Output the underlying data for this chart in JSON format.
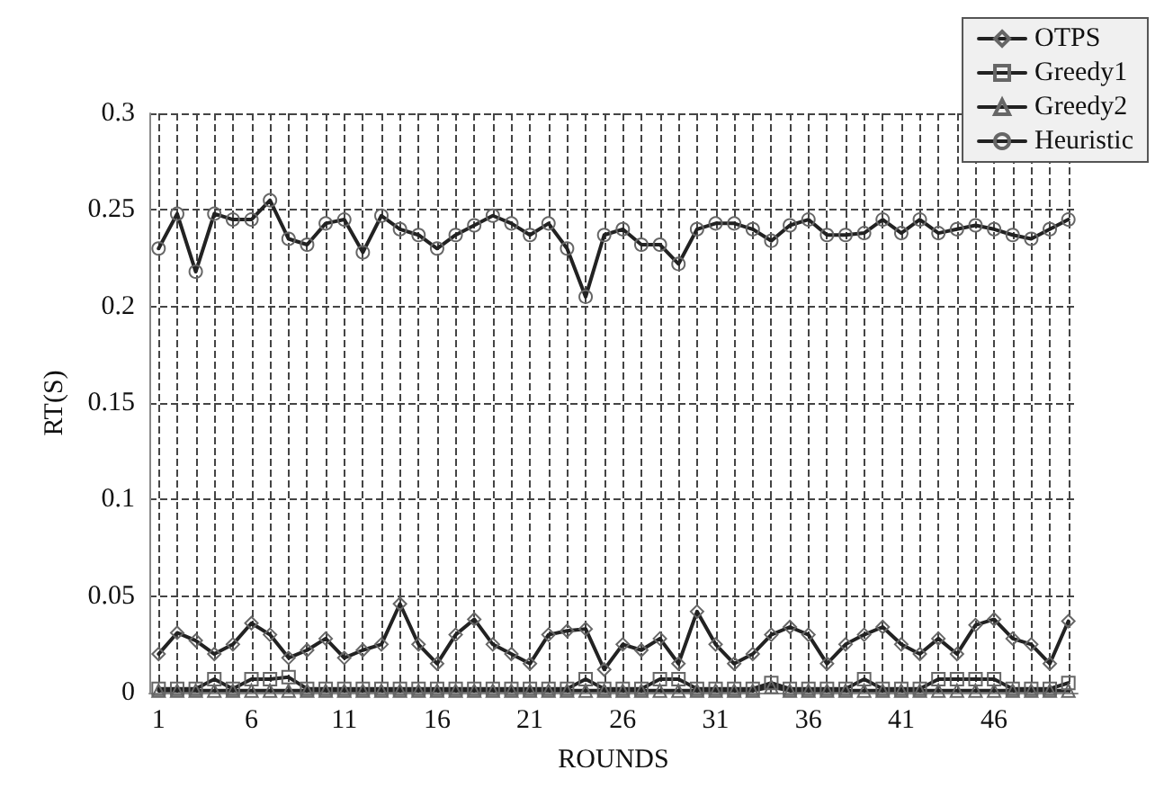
{
  "chart_data": {
    "type": "line",
    "xlabel": "ROUNDS",
    "ylabel": "RT(S)",
    "x": [
      1,
      2,
      3,
      4,
      5,
      6,
      7,
      8,
      9,
      10,
      11,
      12,
      13,
      14,
      15,
      16,
      17,
      18,
      19,
      20,
      21,
      22,
      23,
      24,
      25,
      26,
      27,
      28,
      29,
      30,
      31,
      32,
      33,
      34,
      35,
      36,
      37,
      38,
      39,
      40,
      41,
      42,
      43,
      44,
      45,
      46,
      47,
      48,
      49,
      50
    ],
    "xlim": [
      0.5,
      50.5
    ],
    "xticks": [
      1,
      {
        "value": 2,
        "label": null
      },
      {
        "value": 3,
        "label": null
      },
      {
        "value": 4,
        "label": null
      },
      {
        "value": 5,
        "label": null
      },
      6,
      {
        "value": 7,
        "label": null
      },
      {
        "value": 8,
        "label": null
      },
      {
        "value": 9,
        "label": null
      },
      {
        "value": 10,
        "label": null
      },
      11,
      {
        "value": 12,
        "label": null
      },
      {
        "value": 13,
        "label": null
      },
      {
        "value": 14,
        "label": null
      },
      {
        "value": 15,
        "label": null
      },
      16,
      {
        "value": 17,
        "label": null
      },
      {
        "value": 18,
        "label": null
      },
      {
        "value": 19,
        "label": null
      },
      {
        "value": 20,
        "label": null
      },
      21,
      {
        "value": 22,
        "label": null
      },
      {
        "value": 23,
        "label": null
      },
      {
        "value": 24,
        "label": null
      },
      {
        "value": 25,
        "label": null
      },
      26,
      {
        "value": 27,
        "label": null
      },
      {
        "value": 28,
        "label": null
      },
      {
        "value": 29,
        "label": null
      },
      {
        "value": 30,
        "label": null
      },
      31,
      {
        "value": 32,
        "label": null
      },
      {
        "value": 33,
        "label": null
      },
      {
        "value": 34,
        "label": null
      },
      {
        "value": 35,
        "label": null
      },
      36,
      {
        "value": 37,
        "label": null
      },
      {
        "value": 38,
        "label": null
      },
      {
        "value": 39,
        "label": null
      },
      {
        "value": 40,
        "label": null
      },
      41,
      {
        "value": 42,
        "label": null
      },
      {
        "value": 43,
        "label": null
      },
      {
        "value": 44,
        "label": null
      },
      {
        "value": 45,
        "label": null
      },
      46,
      {
        "value": 47,
        "label": null
      },
      {
        "value": 48,
        "label": null
      },
      {
        "value": 49,
        "label": null
      },
      {
        "value": 50,
        "label": null
      }
    ],
    "series": [
      {
        "name": "OTPS",
        "color": "#222222",
        "marker": "diamond",
        "values": [
          0.02,
          0.031,
          0.027,
          0.02,
          0.025,
          0.036,
          0.03,
          0.018,
          0.022,
          0.028,
          0.018,
          0.022,
          0.025,
          0.046,
          0.025,
          0.015,
          0.03,
          0.038,
          0.025,
          0.02,
          0.015,
          0.03,
          0.032,
          0.033,
          0.012,
          0.025,
          0.022,
          0.028,
          0.015,
          0.042,
          0.025,
          0.015,
          0.02,
          0.03,
          0.034,
          0.03,
          0.015,
          0.025,
          0.03,
          0.034,
          0.025,
          0.02,
          0.028,
          0.02,
          0.035,
          0.038,
          0.028,
          0.025,
          0.015,
          0.037
        ]
      },
      {
        "name": "Greedy1",
        "color": "#222222",
        "marker": "square",
        "values": [
          0.002,
          0.002,
          0.002,
          0.007,
          0.002,
          0.007,
          0.007,
          0.008,
          0.002,
          0.002,
          0.002,
          0.002,
          0.002,
          0.002,
          0.002,
          0.002,
          0.002,
          0.002,
          0.002,
          0.002,
          0.002,
          0.002,
          0.002,
          0.007,
          0.002,
          0.002,
          0.002,
          0.007,
          0.007,
          0.002,
          0.002,
          0.002,
          0.002,
          0.005,
          0.002,
          0.002,
          0.002,
          0.002,
          0.007,
          0.002,
          0.002,
          0.002,
          0.007,
          0.007,
          0.007,
          0.007,
          0.002,
          0.002,
          0.002,
          0.005
        ]
      },
      {
        "name": "Greedy2",
        "color": "#222222",
        "marker": "triangle",
        "values": [
          0.001,
          0.001,
          0.001,
          0.001,
          0.001,
          0.001,
          0.001,
          0.001,
          0.001,
          0.001,
          0.001,
          0.001,
          0.001,
          0.001,
          0.001,
          0.001,
          0.001,
          0.001,
          0.001,
          0.001,
          0.001,
          0.001,
          0.001,
          0.001,
          0.001,
          0.001,
          0.001,
          0.001,
          0.001,
          0.001,
          0.001,
          0.001,
          0.001,
          0.003,
          0.001,
          0.001,
          0.001,
          0.001,
          0.001,
          0.001,
          0.001,
          0.001,
          0.001,
          0.001,
          0.001,
          0.001,
          0.001,
          0.001,
          0.001,
          0.001
        ]
      },
      {
        "name": "Heuristic",
        "color": "#222222",
        "marker": "circle",
        "values": [
          0.23,
          0.248,
          0.218,
          0.248,
          0.245,
          0.245,
          0.255,
          0.235,
          0.232,
          0.243,
          0.245,
          0.228,
          0.247,
          0.24,
          0.237,
          0.23,
          0.237,
          0.242,
          0.247,
          0.243,
          0.237,
          0.243,
          0.23,
          0.205,
          0.237,
          0.24,
          0.232,
          0.232,
          0.222,
          0.24,
          0.243,
          0.243,
          0.24,
          0.234,
          0.242,
          0.245,
          0.237,
          0.237,
          0.238,
          0.245,
          0.238,
          0.245,
          0.238,
          0.24,
          0.242,
          0.24,
          0.237,
          0.235,
          0.24,
          0.245
        ]
      }
    ],
    "ylim": [
      0,
      0.3
    ],
    "yticks": [
      0,
      0.05,
      0.1,
      0.15,
      0.2,
      0.25,
      0.3
    ],
    "grid": true,
    "legend": "top right",
    "line_style": "solid"
  }
}
